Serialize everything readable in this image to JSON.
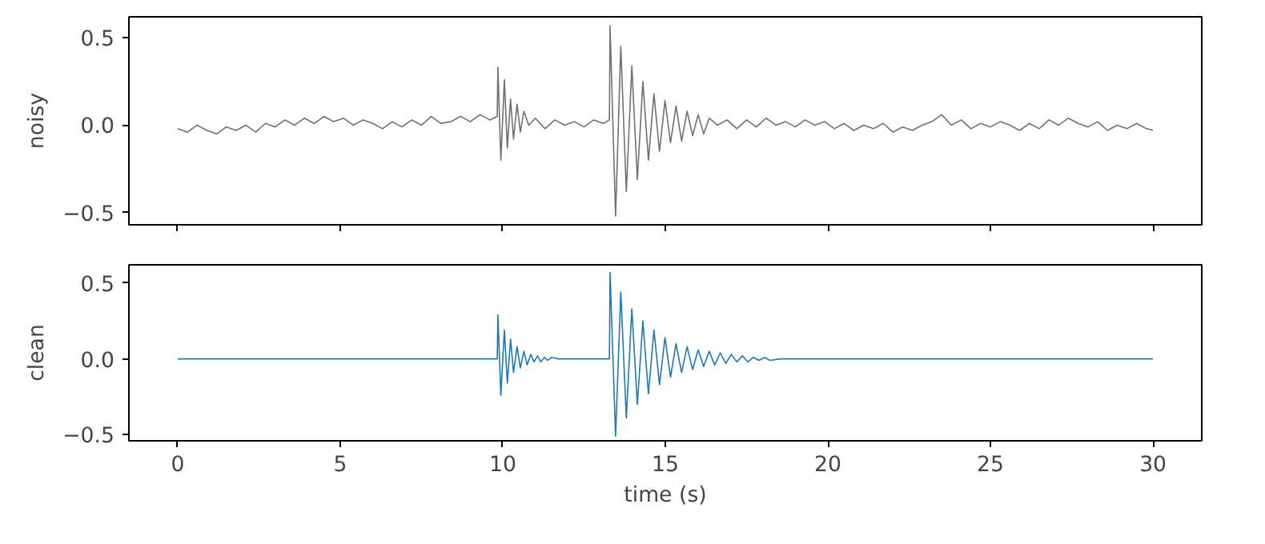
{
  "chart_data": [
    {
      "type": "line",
      "ylabel": "noisy",
      "grid": false,
      "tick_labels": "y",
      "xlim": [
        -1.5,
        31.5
      ],
      "xticks": [
        {
          "value": 0,
          "label": null
        },
        {
          "value": 5,
          "label": null
        },
        {
          "value": 10,
          "label": null
        },
        {
          "value": 15,
          "label": null
        },
        {
          "value": 20,
          "label": null
        },
        {
          "value": 25,
          "label": null
        },
        {
          "value": 30,
          "label": null
        }
      ],
      "ylim": [
        -0.57,
        0.62
      ],
      "yticks": [
        {
          "value": -0.5,
          "label": "−0.5"
        },
        {
          "value": 0,
          "label": "0.0"
        },
        {
          "value": 0.5,
          "label": "0.5"
        }
      ],
      "x": [
        0,
        0.3,
        0.6,
        0.9,
        1.2,
        1.5,
        1.8,
        2.1,
        2.4,
        2.7,
        3.0,
        3.3,
        3.6,
        3.9,
        4.2,
        4.5,
        4.8,
        5.1,
        5.4,
        5.7,
        6.0,
        6.3,
        6.6,
        6.9,
        7.2,
        7.5,
        7.8,
        8.1,
        8.4,
        8.7,
        9.0,
        9.3,
        9.6,
        9.83,
        9.85,
        9.94,
        10.05,
        10.14,
        10.24,
        10.33,
        10.44,
        10.54,
        10.65,
        10.8,
        11.0,
        11.3,
        11.6,
        11.9,
        12.2,
        12.5,
        12.8,
        13.1,
        13.28,
        13.3,
        13.47,
        13.63,
        13.8,
        13.97,
        14.14,
        14.31,
        14.48,
        14.65,
        14.82,
        14.99,
        15.16,
        15.33,
        15.5,
        15.67,
        15.84,
        16.01,
        16.18,
        16.35,
        16.6,
        16.9,
        17.2,
        17.5,
        17.8,
        18.1,
        18.4,
        18.7,
        19.0,
        19.3,
        19.6,
        19.9,
        20.2,
        20.5,
        20.8,
        21.1,
        21.4,
        21.7,
        22.0,
        22.3,
        22.6,
        22.9,
        23.2,
        23.5,
        23.8,
        24.1,
        24.4,
        24.7,
        25.0,
        25.3,
        25.6,
        25.9,
        26.2,
        26.5,
        26.8,
        27.1,
        27.4,
        27.7,
        28.0,
        28.3,
        28.6,
        28.9,
        29.2,
        29.5,
        29.8,
        30.0
      ],
      "series": [
        {
          "color": "#707070",
          "values": [
            -0.02,
            -0.04,
            0.0,
            -0.03,
            -0.05,
            -0.01,
            -0.03,
            0.0,
            -0.04,
            0.01,
            -0.01,
            0.03,
            0.0,
            0.04,
            0.01,
            0.05,
            0.02,
            0.04,
            0.0,
            0.03,
            0.01,
            -0.02,
            0.02,
            -0.01,
            0.03,
            0.0,
            0.05,
            0.01,
            0.02,
            0.05,
            0.02,
            0.06,
            0.03,
            0.05,
            0.33,
            -0.2,
            0.26,
            -0.13,
            0.15,
            -0.08,
            0.12,
            -0.04,
            0.08,
            0.0,
            0.04,
            -0.02,
            0.03,
            0.0,
            0.02,
            -0.01,
            0.03,
            0.01,
            0.03,
            0.57,
            -0.52,
            0.45,
            -0.38,
            0.34,
            -0.31,
            0.25,
            -0.2,
            0.18,
            -0.15,
            0.14,
            -0.1,
            0.11,
            -0.09,
            0.08,
            -0.06,
            0.06,
            -0.05,
            0.04,
            0.0,
            0.03,
            -0.02,
            0.03,
            -0.01,
            0.04,
            0.0,
            0.02,
            -0.01,
            0.03,
            0.0,
            0.02,
            -0.02,
            0.01,
            -0.03,
            0.0,
            -0.02,
            0.01,
            -0.04,
            -0.01,
            -0.03,
            0.0,
            0.02,
            0.06,
            0.0,
            0.03,
            -0.02,
            0.01,
            -0.01,
            0.02,
            0.0,
            -0.03,
            0.01,
            -0.02,
            0.03,
            0.0,
            0.04,
            0.01,
            -0.01,
            0.02,
            -0.03,
            0.0,
            -0.02,
            0.01,
            -0.02,
            -0.03
          ]
        }
      ]
    },
    {
      "type": "line",
      "ylabel": "clean",
      "xlabel": "time (s)",
      "grid": false,
      "xlim": [
        -1.5,
        31.5
      ],
      "xticks": [
        0,
        5,
        10,
        15,
        20,
        25,
        30
      ],
      "ylim": [
        -0.54,
        0.62
      ],
      "yticks": [
        {
          "value": -0.5,
          "label": "−0.5"
        },
        {
          "value": 0,
          "label": "0.0"
        },
        {
          "value": 0.5,
          "label": "0.5"
        }
      ],
      "x": [
        0,
        9.83,
        9.85,
        9.94,
        10.05,
        10.14,
        10.24,
        10.33,
        10.44,
        10.54,
        10.65,
        10.75,
        10.86,
        10.96,
        11.07,
        11.17,
        11.28,
        11.38,
        11.5,
        11.7,
        13.28,
        13.3,
        13.47,
        13.63,
        13.8,
        13.97,
        14.14,
        14.31,
        14.48,
        14.65,
        14.82,
        14.99,
        15.16,
        15.33,
        15.5,
        15.67,
        15.84,
        16.01,
        16.18,
        16.35,
        16.52,
        16.69,
        16.86,
        17.03,
        17.2,
        17.37,
        17.54,
        17.71,
        17.88,
        18.05,
        18.22,
        18.5,
        18.8,
        30
      ],
      "series": [
        {
          "color": "#1f77b4",
          "values": [
            0,
            0,
            0.29,
            -0.24,
            0.19,
            -0.16,
            0.13,
            -0.09,
            0.08,
            -0.06,
            0.05,
            -0.04,
            0.03,
            -0.02,
            0.02,
            -0.02,
            0.01,
            -0.01,
            0.01,
            0,
            0,
            0.57,
            -0.51,
            0.44,
            -0.39,
            0.33,
            -0.3,
            0.25,
            -0.23,
            0.19,
            -0.17,
            0.14,
            -0.12,
            0.1,
            -0.09,
            0.08,
            -0.07,
            0.06,
            -0.05,
            0.05,
            -0.04,
            0.04,
            -0.03,
            0.03,
            -0.02,
            0.02,
            -0.02,
            0.01,
            -0.01,
            0.01,
            -0.01,
            0,
            0,
            0
          ]
        }
      ]
    }
  ]
}
